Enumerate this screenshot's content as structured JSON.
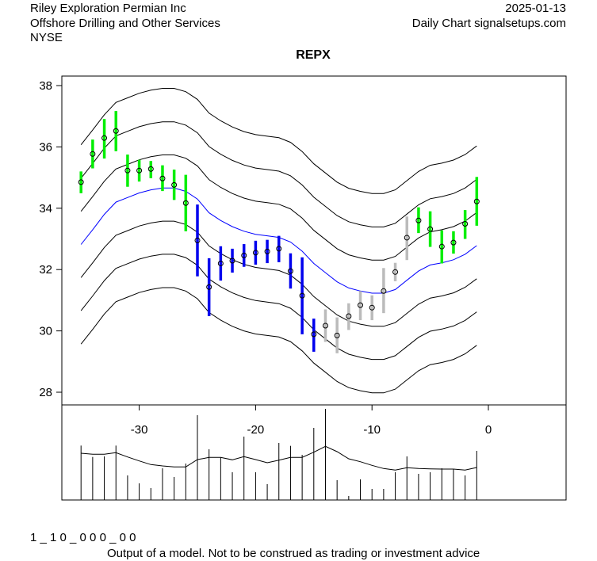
{
  "header": {
    "company": "Riley Exploration Permian Inc",
    "industry": "Offshore Drilling and Other Services",
    "exchange": "NYSE",
    "date": "2025-01-13",
    "source": "Daily Chart signalsetups.com"
  },
  "footer": {
    "code": "1 _ 1 0 _ 0 0 0 _ 0 0",
    "disclaimer": "Output of a model. Not to be construed as trading or investment advice"
  },
  "colors": {
    "up": "#00ee00",
    "down": "#0000ee",
    "neutral": "#bbbbbb",
    "mid": "#0000ff",
    "band": "#000000"
  },
  "chart_data": {
    "type": "candlestick-bands",
    "title": "REPX",
    "ylim": [
      27.7,
      38.4
    ],
    "yticks": [
      "28",
      "30",
      "32",
      "34",
      "36",
      "38"
    ],
    "xticks": [
      "-30",
      "-20",
      "-10",
      "0"
    ],
    "xtick_values": [
      -30,
      -20,
      -10,
      0
    ],
    "x": [
      -35,
      -34,
      -33,
      -32,
      -31,
      -30,
      -29,
      -28,
      -27,
      -26,
      -25,
      -24,
      -23,
      -22,
      -21,
      -20,
      -19,
      -18,
      -17,
      -16,
      -15,
      -14,
      -13,
      -12,
      -11,
      -10,
      -9,
      -8,
      -7,
      -6,
      -5,
      -4,
      -3,
      -2,
      -1
    ],
    "close": [
      34.85,
      35.77,
      36.29,
      36.52,
      35.23,
      35.23,
      35.28,
      34.97,
      34.76,
      34.17,
      32.95,
      31.43,
      32.2,
      32.29,
      32.46,
      32.55,
      32.59,
      32.68,
      31.95,
      31.15,
      29.89,
      30.17,
      29.85,
      30.48,
      30.84,
      30.76,
      31.3,
      31.92,
      33.04,
      33.6,
      33.32,
      32.75,
      32.88,
      33.49,
      34.22
    ],
    "high": [
      35.2,
      36.24,
      36.91,
      37.17,
      35.75,
      35.58,
      35.54,
      35.4,
      35.26,
      35.09,
      34.12,
      32.37,
      32.76,
      32.68,
      32.83,
      32.94,
      32.97,
      33.1,
      32.53,
      32.4,
      30.4,
      30.7,
      30.44,
      30.9,
      31.3,
      31.16,
      32.05,
      32.22,
      33.73,
      34.03,
      33.9,
      33.28,
      33.25,
      33.94,
      35.02
    ],
    "low": [
      34.49,
      35.3,
      35.62,
      35.86,
      34.7,
      34.87,
      34.98,
      34.56,
      34.27,
      33.25,
      31.78,
      30.48,
      31.64,
      31.9,
      32.09,
      32.16,
      32.21,
      32.24,
      31.38,
      29.89,
      29.32,
      29.64,
      29.27,
      30.03,
      30.35,
      30.35,
      30.58,
      31.62,
      32.31,
      33.19,
      32.74,
      32.2,
      32.52,
      33.0,
      33.43
    ],
    "signal": [
      "up",
      "up",
      "up",
      "up",
      "up",
      "up",
      "up",
      "up",
      "up",
      "up",
      "down",
      "down",
      "down",
      "down",
      "down",
      "down",
      "down",
      "down",
      "down",
      "down",
      "down",
      "neutral",
      "neutral",
      "neutral",
      "neutral",
      "neutral",
      "neutral",
      "neutral",
      "neutral",
      "up",
      "up",
      "up",
      "up",
      "up",
      "up"
    ],
    "midline": [
      32.82,
      33.3,
      33.8,
      34.2,
      34.35,
      34.5,
      34.6,
      34.66,
      34.66,
      34.55,
      34.3,
      33.85,
      33.6,
      33.4,
      33.25,
      33.15,
      33.1,
      33.05,
      32.9,
      32.6,
      32.2,
      31.9,
      31.6,
      31.4,
      31.3,
      31.23,
      31.23,
      31.35,
      31.65,
      31.95,
      32.15,
      32.22,
      32.32,
      32.5,
      32.78
    ],
    "band_offsets": [
      -3.25,
      -2.16,
      -1.08,
      1.08,
      2.16,
      3.25
    ],
    "volume": [
      206,
      163,
      165,
      206,
      93,
      63,
      45,
      120,
      87,
      138,
      321,
      192,
      161,
      105,
      240,
      105,
      60,
      216,
      205,
      171,
      273,
      345,
      75,
      15,
      78,
      42,
      42,
      105,
      165,
      99,
      105,
      120,
      117,
      93,
      186
    ],
    "volume_avg": [
      177,
      173,
      173,
      179,
      163,
      148,
      134,
      129,
      125,
      125,
      153,
      161,
      161,
      152,
      164,
      153,
      141,
      151,
      161,
      161,
      181,
      203,
      183,
      156,
      145,
      131,
      119,
      113,
      122,
      119,
      118,
      117,
      117,
      113,
      123
    ]
  }
}
